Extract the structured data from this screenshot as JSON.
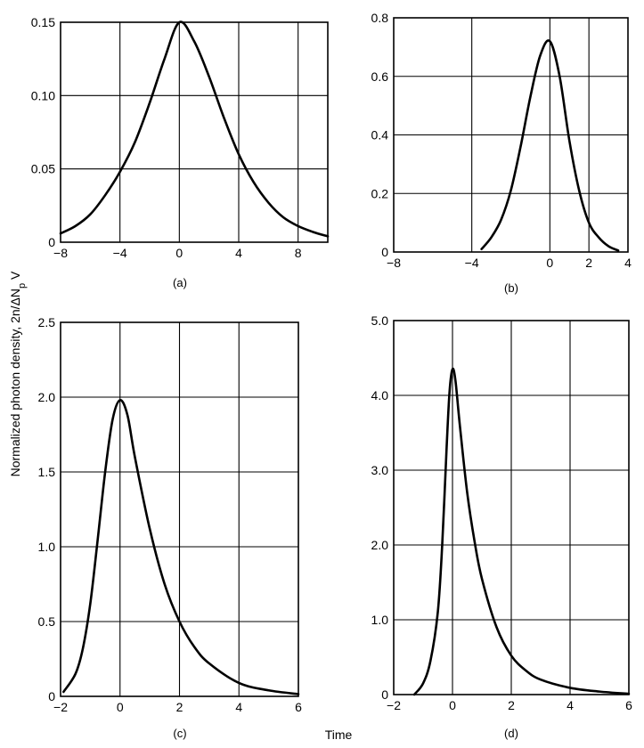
{
  "chart_data": [
    {
      "type": "line",
      "panel_label": "(a)",
      "xlim": [
        -8,
        10
      ],
      "ylim": [
        0,
        0.15
      ],
      "x_ticks": [
        -8,
        -4,
        0,
        4,
        8
      ],
      "x_tick_labels": [
        "−8",
        "−4",
        "0",
        "4",
        "8"
      ],
      "y_ticks": [
        0,
        0.05,
        0.1,
        0.15
      ],
      "y_tick_labels": [
        "0",
        "0.05",
        "0.10",
        "0.15"
      ],
      "grid": true,
      "series": [
        {
          "name": "photon density",
          "x": [
            -8,
            -7,
            -6,
            -5,
            -4,
            -3,
            -2,
            -1,
            0,
            1,
            2,
            3,
            4,
            5,
            6,
            7,
            8,
            9,
            10
          ],
          "y": [
            0.006,
            0.011,
            0.019,
            0.032,
            0.048,
            0.068,
            0.095,
            0.125,
            0.15,
            0.137,
            0.113,
            0.085,
            0.06,
            0.041,
            0.027,
            0.017,
            0.011,
            0.007,
            0.004
          ]
        }
      ]
    },
    {
      "type": "line",
      "panel_label": "(b)",
      "xlim": [
        -8,
        4
      ],
      "ylim": [
        0,
        0.8
      ],
      "x_ticks": [
        -8,
        -4,
        0,
        2,
        4
      ],
      "x_tick_labels": [
        "−8",
        "−4",
        "0",
        "2",
        "4"
      ],
      "y_ticks": [
        0,
        0.2,
        0.4,
        0.6,
        0.8
      ],
      "y_tick_labels": [
        "0",
        "0.2",
        "0.4",
        "0.6",
        "0.8"
      ],
      "grid": true,
      "series": [
        {
          "name": "photon density",
          "x": [
            -3.5,
            -3,
            -2.5,
            -2,
            -1.5,
            -1,
            -0.5,
            0,
            0.5,
            1,
            1.5,
            2,
            2.5,
            3,
            3.5
          ],
          "y": [
            0.01,
            0.05,
            0.11,
            0.21,
            0.36,
            0.53,
            0.67,
            0.72,
            0.6,
            0.38,
            0.21,
            0.1,
            0.05,
            0.02,
            0.005
          ]
        }
      ]
    },
    {
      "type": "line",
      "panel_label": "(c)",
      "xlim": [
        -2,
        6
      ],
      "ylim": [
        0,
        2.5
      ],
      "x_ticks": [
        -2,
        0,
        2,
        4,
        6
      ],
      "x_tick_labels": [
        "−2",
        "0",
        "2",
        "4",
        "6"
      ],
      "y_ticks": [
        0,
        0.5,
        1.0,
        1.5,
        2.0,
        2.5
      ],
      "y_tick_labels": [
        "0",
        "0.5",
        "1.0",
        "1.5",
        "2.0",
        "2.5"
      ],
      "grid": true,
      "series": [
        {
          "name": "photon density",
          "x": [
            -1.9,
            -1.5,
            -1.25,
            -1,
            -0.75,
            -0.5,
            -0.25,
            0,
            0.25,
            0.5,
            1,
            1.5,
            2,
            2.5,
            3,
            4,
            5,
            6
          ],
          "y": [
            0.03,
            0.15,
            0.32,
            0.62,
            1.05,
            1.5,
            1.85,
            1.98,
            1.88,
            1.6,
            1.12,
            0.75,
            0.5,
            0.33,
            0.22,
            0.09,
            0.04,
            0.015
          ]
        }
      ]
    },
    {
      "type": "line",
      "panel_label": "(d)",
      "xlim": [
        -2,
        6
      ],
      "ylim": [
        0,
        5.0
      ],
      "x_ticks": [
        -2,
        0,
        2,
        4,
        6
      ],
      "x_tick_labels": [
        "−2",
        "0",
        "2",
        "4",
        "6"
      ],
      "y_ticks": [
        0,
        1.0,
        2.0,
        3.0,
        4.0,
        5.0
      ],
      "y_tick_labels": [
        "0",
        "1.0",
        "2.0",
        "3.0",
        "4.0",
        "5.0"
      ],
      "grid": true,
      "series": [
        {
          "name": "photon density",
          "x": [
            -1.3,
            -1,
            -0.75,
            -0.5,
            -0.35,
            -0.2,
            -0.1,
            0,
            0.1,
            0.25,
            0.5,
            0.75,
            1,
            1.5,
            2,
            2.5,
            3,
            4,
            5,
            6
          ],
          "y": [
            0.0,
            0.15,
            0.45,
            1.1,
            2.0,
            3.3,
            4.05,
            4.35,
            4.2,
            3.6,
            2.7,
            2.05,
            1.55,
            0.9,
            0.52,
            0.32,
            0.2,
            0.09,
            0.04,
            0.01
          ]
        }
      ]
    }
  ],
  "ylabel_main": "Normalized photon density, 2n/ΔN",
  "ylabel_sub": "p",
  "ylabel_end": " V",
  "xlabel": "Time"
}
